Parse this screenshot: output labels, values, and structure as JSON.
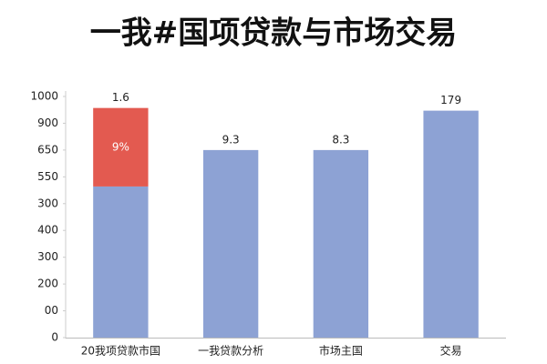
{
  "chart_data": {
    "type": "bar",
    "stacked": true,
    "title": "一我#国项贷款与市场交易",
    "categories": [
      "20我项贷款市国",
      "一我贷款分析",
      "市场主国",
      "交易"
    ],
    "series": [
      {
        "color": "#8da2d4",
        "values": [
          5.64,
          7.0,
          7.0,
          8.47
        ]
      },
      {
        "color": "#e35a50",
        "values": [
          2.93,
          null,
          null,
          null
        ]
      }
    ],
    "ylim": [
      0,
      9
    ],
    "yticks": [
      {
        "value": 0,
        "label": "0"
      },
      {
        "value": 1,
        "label": "00"
      },
      {
        "value": 2,
        "label": "200"
      },
      {
        "value": 3,
        "label": "300"
      },
      {
        "value": 4,
        "label": "400"
      },
      {
        "value": 5,
        "label": "300"
      },
      {
        "value": 6,
        "label": "550"
      },
      {
        "value": 7,
        "label": "650"
      },
      {
        "value": 8,
        "label": "900"
      },
      {
        "value": 9,
        "label": "1000"
      }
    ],
    "grid": false,
    "annotations": [
      {
        "text": "1.6",
        "category": 0,
        "position": "top"
      },
      {
        "text": "9%",
        "category": 0,
        "series": 1,
        "position": "inside"
      },
      {
        "text": "9.3",
        "category": 1,
        "position": "top"
      },
      {
        "text": "8.3",
        "category": 2,
        "position": "top"
      },
      {
        "text": "179",
        "category": 3,
        "position": "top"
      }
    ]
  }
}
